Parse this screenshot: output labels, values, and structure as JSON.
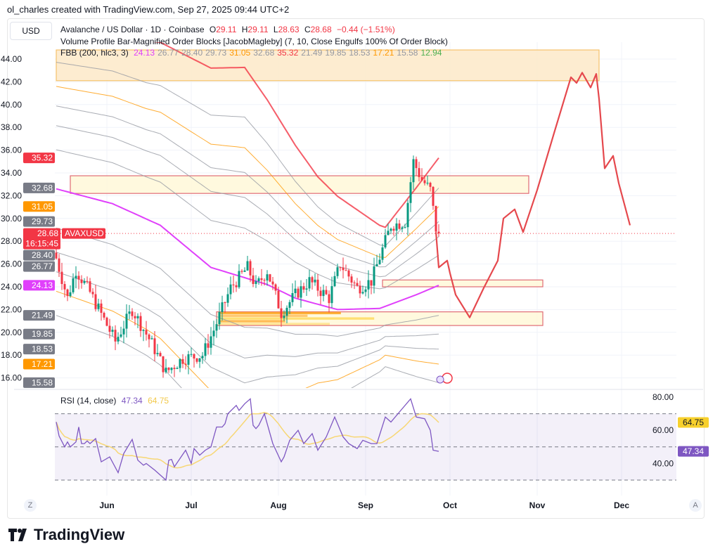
{
  "credit": "ol_charles created with TradingView.com, Sep 27, 2025 09:44 UTC+2",
  "currency_button": "USD",
  "legend": {
    "symbol": "Avalanche / US Dollar · 1D · Coinbase",
    "o_label": "O",
    "o": "29.11",
    "h_label": "H",
    "h": "29.11",
    "l_label": "L",
    "l": "28.63",
    "c_label": "C",
    "c": "28.68",
    "change": "−0.44 (−1.51%)",
    "indicator2": "Volume Profile Bar-Magnified Order Blocks [JacobMagleby] (7, 10, Close Engulfs 100% Of Order Block)",
    "fbb_name": "FBB (200, hlc3, 3)",
    "fbb_values": [
      {
        "v": "24.13",
        "color": "#e040fb"
      },
      {
        "v": "26.77",
        "color": "#9598a1"
      },
      {
        "v": "28.40",
        "color": "#9598a1"
      },
      {
        "v": "29.73",
        "color": "#9598a1"
      },
      {
        "v": "31.05",
        "color": "#ff9800"
      },
      {
        "v": "32.68",
        "color": "#9598a1"
      },
      {
        "v": "35.32",
        "color": "#f23645"
      },
      {
        "v": "21.49",
        "color": "#9598a1"
      },
      {
        "v": "19.85",
        "color": "#9598a1"
      },
      {
        "v": "18.53",
        "color": "#9598a1"
      },
      {
        "v": "17.21",
        "color": "#ff9800"
      },
      {
        "v": "15.58",
        "color": "#9598a1"
      },
      {
        "v": "12.94",
        "color": "#4caf50"
      }
    ]
  },
  "rsi_legend": {
    "name": "RSI (14, close)",
    "rsi": "47.34",
    "ma": "64.75"
  },
  "footer_logo": "TradingView",
  "scale_buttons": {
    "z": "Z",
    "a": "A"
  },
  "chart_data": {
    "type": "candlestick",
    "symbol": "AVAXUSD",
    "countdown": "16:15:45",
    "last_price": 28.68,
    "ylim": [
      15,
      46
    ],
    "yticks": [
      "44.00",
      "42.00",
      "40.00",
      "38.00",
      "36.00",
      "34.00",
      "32.00",
      "30.00",
      "28.00",
      "26.00",
      "24.00",
      "22.00",
      "20.00",
      "18.00",
      "16.00"
    ],
    "xticks": [
      {
        "label": "Jun",
        "date": "2025-06-01"
      },
      {
        "label": "Jul",
        "date": "2025-07-01"
      },
      {
        "label": "Aug",
        "date": "2025-08-01"
      },
      {
        "label": "Sep",
        "date": "2025-09-01"
      },
      {
        "label": "Oct",
        "date": "2025-10-01"
      },
      {
        "label": "Nov",
        "date": "2025-11-01"
      },
      {
        "label": "Dec",
        "date": "2025-12-01"
      }
    ],
    "xlim": [
      "2025-05-14",
      "2025-12-22"
    ],
    "colors": {
      "up": "#089981",
      "down": "#f23645",
      "basis": "#e040fb",
      "projection": "#e5484d"
    },
    "close_path": [
      [
        "2025-05-14",
        26.5
      ],
      [
        "2025-05-18",
        23
      ],
      [
        "2025-05-21",
        25.5
      ],
      [
        "2025-05-26",
        23.5
      ],
      [
        "2025-06-04",
        19.2
      ],
      [
        "2025-06-10",
        22
      ],
      [
        "2025-06-17",
        19
      ],
      [
        "2025-06-22",
        16.5
      ],
      [
        "2025-06-28",
        17.7
      ],
      [
        "2025-07-05",
        18
      ],
      [
        "2025-07-09",
        20.2
      ],
      [
        "2025-07-15",
        23.9
      ],
      [
        "2025-07-21",
        25.7
      ],
      [
        "2025-07-24",
        24
      ],
      [
        "2025-07-28",
        25.4
      ],
      [
        "2025-08-02",
        21.7
      ],
      [
        "2025-08-07",
        23.3
      ],
      [
        "2025-08-12",
        24.5
      ],
      [
        "2025-08-19",
        23
      ],
      [
        "2025-08-23",
        26
      ],
      [
        "2025-08-29",
        23.9
      ],
      [
        "2025-09-03",
        24.5
      ],
      [
        "2025-09-10",
        29.4
      ],
      [
        "2025-09-15",
        29.7
      ],
      [
        "2025-09-18",
        35
      ],
      [
        "2025-09-21",
        33.4
      ],
      [
        "2025-09-24",
        32.5
      ],
      [
        "2025-09-26",
        29.1
      ],
      [
        "2025-09-27",
        28.68
      ]
    ],
    "fbb": {
      "basis": [
        [
          "2025-05-14",
          32.6
        ],
        [
          "2025-06-03",
          31.3
        ],
        [
          "2025-06-20",
          29.4
        ],
        [
          "2025-07-08",
          25.7
        ],
        [
          "2025-07-28",
          24.2
        ],
        [
          "2025-08-07",
          23
        ],
        [
          "2025-08-22",
          22
        ],
        [
          "2025-09-06",
          22.1
        ],
        [
          "2025-09-19",
          23.3
        ],
        [
          "2025-09-27",
          24.13
        ]
      ],
      "width_scale": [
        [
          "2025-05-14",
          1.3
        ],
        [
          "2025-06-15",
          1.4
        ],
        [
          "2025-07-20",
          1.65
        ],
        [
          "2025-08-15",
          1.0
        ],
        [
          "2025-09-08",
          0.62
        ],
        [
          "2025-09-27",
          1.0
        ]
      ],
      "bands": [
        {
          "end": 35.32,
          "color": "#f23645",
          "tag": "35.32"
        },
        {
          "end": 32.68,
          "color": "#9598a1",
          "tag": "32.68"
        },
        {
          "end": 31.05,
          "color": "#ff9800",
          "tag": "31.05"
        },
        {
          "end": 29.73,
          "color": "#9598a1",
          "tag": "29.73"
        },
        {
          "end": 28.4,
          "color": "#9598a1",
          "tag": "28.40"
        },
        {
          "end": 26.77,
          "color": "#9598a1",
          "tag": "26.77"
        },
        {
          "end": 24.13,
          "color": "#e040fb",
          "tag": "24.13"
        },
        {
          "end": 21.49,
          "color": "#9598a1",
          "tag": "21.49"
        },
        {
          "end": 19.85,
          "color": "#9598a1",
          "tag": "19.85"
        },
        {
          "end": 18.53,
          "color": "#9598a1",
          "tag": "18.53"
        },
        {
          "end": 17.21,
          "color": "#ff9800",
          "tag": "17.21"
        },
        {
          "end": 15.58,
          "color": "#9598a1",
          "tag": "15.58"
        }
      ]
    },
    "order_blocks": [
      {
        "from": "2025-05-14",
        "to": "2025-11-23",
        "top": 44.8,
        "bottom": 42.1,
        "kind": "supply"
      },
      {
        "from": "2025-05-19",
        "to": "2025-10-29",
        "top": 33.75,
        "bottom": 32.2,
        "kind": "supply"
      },
      {
        "from": "2025-09-07",
        "to": "2025-11-03",
        "top": 24.6,
        "bottom": 24.0,
        "kind": "demand"
      },
      {
        "from": "2025-07-10",
        "to": "2025-11-03",
        "top": 21.8,
        "bottom": 20.6,
        "kind": "demand"
      }
    ],
    "projection": [
      [
        "2025-09-26",
        28.8
      ],
      [
        "2025-09-27",
        25.7
      ],
      [
        "2025-09-30",
        26.3
      ],
      [
        "2025-10-01",
        25.2
      ],
      [
        "2025-10-03",
        23.3
      ],
      [
        "2025-10-08",
        21.3
      ],
      [
        "2025-10-13",
        23.9
      ],
      [
        "2025-10-18",
        26.3
      ],
      [
        "2025-10-20",
        30
      ],
      [
        "2025-10-24",
        30.8
      ],
      [
        "2025-10-27",
        28.8
      ],
      [
        "2025-11-01",
        32.5
      ],
      [
        "2025-11-07",
        37.5
      ],
      [
        "2025-11-13",
        42.4
      ],
      [
        "2025-11-15",
        41.9
      ],
      [
        "2025-11-17",
        42.8
      ],
      [
        "2025-11-20",
        41.5
      ],
      [
        "2025-11-22",
        42.7
      ],
      [
        "2025-11-23",
        40.5
      ],
      [
        "2025-11-25",
        34.4
      ],
      [
        "2025-11-28",
        35.5
      ],
      [
        "2025-11-30",
        33.1
      ],
      [
        "2025-12-04",
        29.4
      ]
    ],
    "rsi": {
      "ylim": [
        20,
        85
      ],
      "yticks": [
        "80.00",
        "60.00",
        "40.00"
      ],
      "levels": [
        70,
        50,
        30
      ],
      "last_rsi": "47.34",
      "last_ma": "64.75",
      "colors": {
        "rsi": "#7e57c2",
        "ma": "#f7d774"
      },
      "points": [
        [
          "2025-05-14",
          65
        ],
        [
          "2025-05-15",
          56.6
        ],
        [
          "2025-05-17",
          50
        ],
        [
          "2025-05-18",
          53
        ],
        [
          "2025-05-19",
          50
        ],
        [
          "2025-05-21",
          53
        ],
        [
          "2025-05-22",
          62
        ],
        [
          "2025-05-23",
          52
        ],
        [
          "2025-05-24",
          52
        ],
        [
          "2025-05-25",
          53.6
        ],
        [
          "2025-05-26",
          52
        ],
        [
          "2025-05-28",
          55
        ],
        [
          "2025-05-30",
          41
        ],
        [
          "2025-06-02",
          44
        ],
        [
          "2025-06-05",
          34.5
        ],
        [
          "2025-06-07",
          46
        ],
        [
          "2025-06-10",
          54.5
        ],
        [
          "2025-06-12",
          42
        ],
        [
          "2025-06-14",
          39
        ],
        [
          "2025-06-15",
          40
        ],
        [
          "2025-06-18",
          36
        ],
        [
          "2025-06-20",
          33
        ],
        [
          "2025-06-22",
          30
        ],
        [
          "2025-06-23",
          42
        ],
        [
          "2025-06-24",
          42.5
        ],
        [
          "2025-06-25",
          38
        ],
        [
          "2025-06-27",
          43
        ],
        [
          "2025-06-29",
          48
        ],
        [
          "2025-07-01",
          40
        ],
        [
          "2025-07-02",
          49
        ],
        [
          "2025-07-04",
          45
        ],
        [
          "2025-07-06",
          48
        ],
        [
          "2025-07-08",
          50
        ],
        [
          "2025-07-10",
          62
        ],
        [
          "2025-07-12",
          62
        ],
        [
          "2025-07-13",
          64
        ],
        [
          "2025-07-14",
          70
        ],
        [
          "2025-07-17",
          75
        ],
        [
          "2025-07-18",
          72
        ],
        [
          "2025-07-20",
          76
        ],
        [
          "2025-07-22",
          79
        ],
        [
          "2025-07-23",
          63
        ],
        [
          "2025-07-24",
          61
        ],
        [
          "2025-07-25",
          63
        ],
        [
          "2025-07-27",
          70
        ],
        [
          "2025-07-30",
          52
        ],
        [
          "2025-08-02",
          41
        ],
        [
          "2025-08-03",
          44
        ],
        [
          "2025-08-05",
          54
        ],
        [
          "2025-08-08",
          60
        ],
        [
          "2025-08-10",
          52
        ],
        [
          "2025-08-13",
          58
        ],
        [
          "2025-08-15",
          48
        ],
        [
          "2025-08-18",
          56
        ],
        [
          "2025-08-21",
          68
        ],
        [
          "2025-08-24",
          56
        ],
        [
          "2025-08-26",
          52
        ],
        [
          "2025-08-29",
          49
        ],
        [
          "2025-08-31",
          54
        ],
        [
          "2025-09-03",
          52
        ],
        [
          "2025-09-05",
          52
        ],
        [
          "2025-09-08",
          68
        ],
        [
          "2025-09-10",
          65
        ],
        [
          "2025-09-14",
          73
        ],
        [
          "2025-09-17",
          79
        ],
        [
          "2025-09-19",
          68
        ],
        [
          "2025-09-22",
          67
        ],
        [
          "2025-09-24",
          60
        ],
        [
          "2025-09-25",
          48
        ],
        [
          "2025-09-27",
          47.34
        ]
      ]
    }
  }
}
